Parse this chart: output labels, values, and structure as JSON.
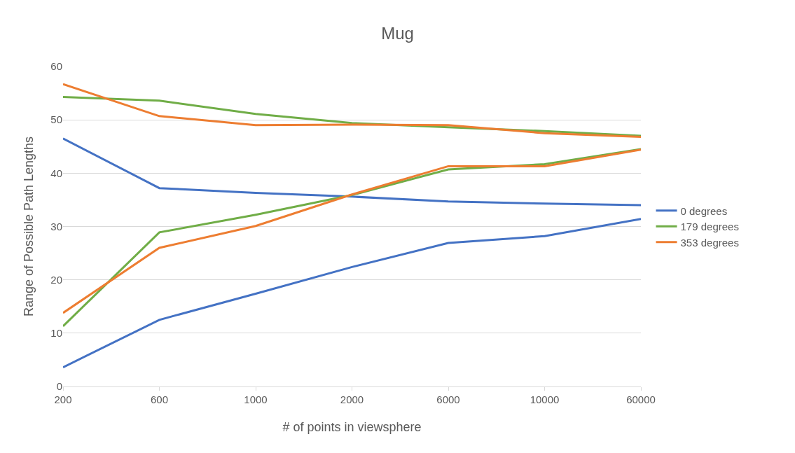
{
  "chart_data": {
    "type": "line",
    "title": "Mug",
    "xlabel": "# of points in viewsphere",
    "ylabel": "Range of Possible Path Lengths",
    "categories": [
      "200",
      "600",
      "1000",
      "2000",
      "6000",
      "10000",
      "60000"
    ],
    "series": [
      {
        "name": "0 degrees",
        "color": "#4472c4",
        "values": [
          46.5,
          37.2,
          36.3,
          35.6,
          34.7,
          34.3,
          34.0
        ]
      },
      {
        "color": "#4472c4",
        "values": [
          3.6,
          12.5,
          17.4,
          22.4,
          26.9,
          28.2,
          31.4
        ]
      },
      {
        "name": "179 degrees",
        "color": "#70ad47",
        "values": [
          54.3,
          53.6,
          51.1,
          49.4,
          48.6,
          47.9,
          47.0
        ]
      },
      {
        "color": "#70ad47",
        "values": [
          11.3,
          28.9,
          32.2,
          35.9,
          40.7,
          41.7,
          44.5
        ]
      },
      {
        "name": "353 degrees",
        "color": "#ed7d31",
        "values": [
          56.7,
          50.7,
          49.0,
          49.1,
          49.0,
          47.5,
          46.8
        ]
      },
      {
        "color": "#ed7d31",
        "values": [
          13.8,
          26.0,
          30.1,
          36.0,
          41.3,
          41.3,
          44.4
        ]
      }
    ],
    "ylim": [
      0,
      60
    ],
    "yticks": [
      0,
      10,
      20,
      30,
      40,
      50,
      60
    ],
    "grid": "y",
    "legend": "right",
    "marker": "none",
    "line_style": "solid"
  }
}
